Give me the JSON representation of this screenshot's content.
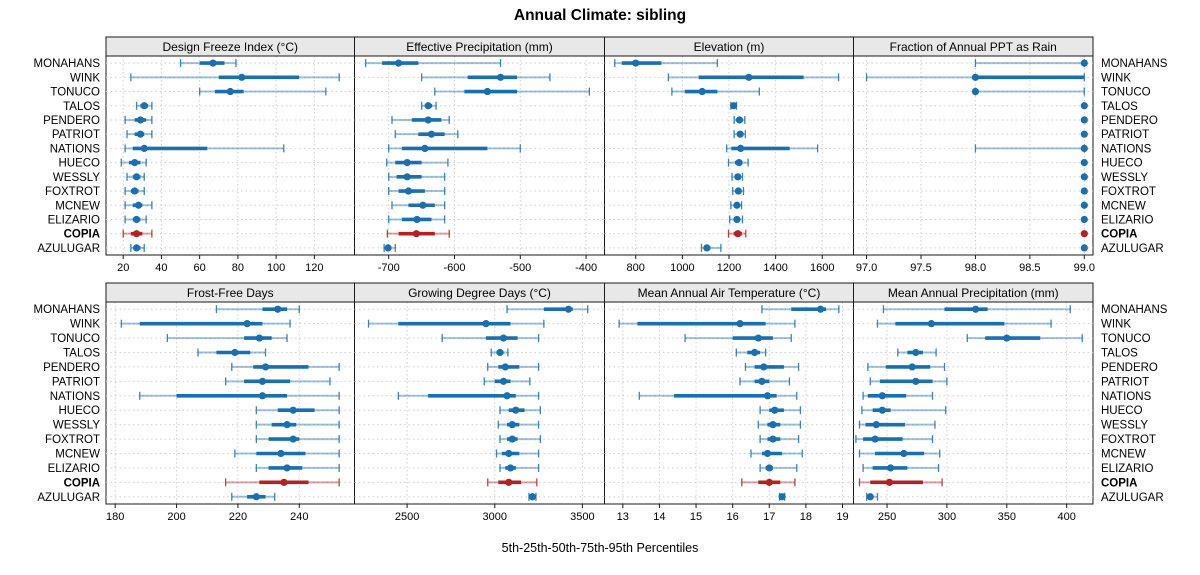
{
  "title": "Annual Climate: sibling",
  "caption": "5th-25th-50th-75th-95th Percentiles",
  "colors": {
    "primary": "#1a6faf",
    "highlight": "#b22222",
    "grid": "#cfcfcf",
    "border": "#1a1a1a",
    "strip_bg": "#e8e8e8"
  },
  "chart_data": {
    "type": "percentile-dotplot",
    "layout": {
      "rows": 2,
      "cols": 4
    },
    "percentiles": [
      "5th",
      "25th",
      "50th",
      "75th",
      "95th"
    ],
    "stations": [
      "MONAHANS",
      "WINK",
      "TONUCO",
      "TALOS",
      "PENDERO",
      "PATRIOT",
      "NATIONS",
      "HUECO",
      "WESSLY",
      "FOXTROT",
      "MCNEW",
      "ELIZARIO",
      "COPIA",
      "AZULUGAR"
    ],
    "highlight_station": "COPIA",
    "panels": [
      {
        "title": "Design Freeze Index (°C)",
        "row": 0,
        "col": 0,
        "xlim": [
          11,
          141
        ],
        "ticks": [
          20,
          40,
          60,
          80,
          100,
          120
        ],
        "values": [
          [
            50,
            60,
            67,
            73,
            79
          ],
          [
            24,
            70,
            82,
            112,
            133
          ],
          [
            60,
            68,
            76,
            83,
            126
          ],
          [
            27,
            29,
            31,
            33,
            35
          ],
          [
            21,
            26,
            29,
            32,
            35
          ],
          [
            22,
            26,
            29,
            31,
            35
          ],
          [
            21,
            25,
            31,
            64,
            104
          ],
          [
            19,
            23,
            26,
            29,
            32
          ],
          [
            22,
            25,
            27,
            29,
            31
          ],
          [
            21,
            24,
            26,
            28,
            31
          ],
          [
            21,
            25,
            28,
            30,
            35
          ],
          [
            21,
            25,
            27,
            29,
            32
          ],
          [
            20,
            24,
            27,
            30,
            35
          ],
          [
            24,
            26,
            27,
            29,
            31
          ]
        ]
      },
      {
        "title": "Effective Precipitation (mm)",
        "row": 0,
        "col": 1,
        "xlim": [
          -752,
          -372
        ],
        "ticks": [
          -700,
          -600,
          -500,
          -400
        ],
        "values": [
          [
            -735,
            -710,
            -685,
            -655,
            -530
          ],
          [
            -650,
            -580,
            -530,
            -505,
            -455
          ],
          [
            -630,
            -585,
            -550,
            -505,
            -395
          ],
          [
            -650,
            -645,
            -640,
            -634,
            -628
          ],
          [
            -695,
            -665,
            -640,
            -620,
            -608
          ],
          [
            -690,
            -655,
            -635,
            -615,
            -595
          ],
          [
            -700,
            -680,
            -645,
            -550,
            -500
          ],
          [
            -703,
            -690,
            -672,
            -650,
            -610
          ],
          [
            -700,
            -688,
            -672,
            -650,
            -615
          ],
          [
            -700,
            -685,
            -670,
            -645,
            -615
          ],
          [
            -695,
            -670,
            -648,
            -630,
            -615
          ],
          [
            -700,
            -680,
            -657,
            -635,
            -615
          ],
          [
            -702,
            -685,
            -658,
            -630,
            -608
          ],
          [
            -707,
            -704,
            -701,
            -698,
            -690
          ]
        ]
      },
      {
        "title": "Elevation (m)",
        "row": 0,
        "col": 2,
        "xlim": [
          666,
          1734
        ],
        "ticks": [
          800,
          1000,
          1200,
          1400,
          1600
        ],
        "values": [
          [
            710,
            740,
            800,
            910,
            1150
          ],
          [
            940,
            1070,
            1285,
            1520,
            1670
          ],
          [
            955,
            1010,
            1085,
            1150,
            1330
          ],
          [
            1208,
            1214,
            1220,
            1226,
            1232
          ],
          [
            1222,
            1235,
            1245,
            1255,
            1268
          ],
          [
            1222,
            1235,
            1248,
            1258,
            1270
          ],
          [
            1190,
            1210,
            1250,
            1460,
            1580
          ],
          [
            1198,
            1225,
            1243,
            1258,
            1282
          ],
          [
            1213,
            1227,
            1238,
            1248,
            1258
          ],
          [
            1216,
            1230,
            1240,
            1250,
            1262
          ],
          [
            1208,
            1224,
            1234,
            1244,
            1254
          ],
          [
            1203,
            1220,
            1234,
            1247,
            1258
          ],
          [
            1198,
            1220,
            1238,
            1255,
            1272
          ],
          [
            1082,
            1094,
            1105,
            1120,
            1165
          ]
        ]
      },
      {
        "title": "Fraction of Annual PPT as Rain",
        "row": 0,
        "col": 3,
        "xlim": [
          96.88,
          99.08
        ],
        "ticks": [
          97.0,
          97.5,
          98.0,
          98.5,
          99.0
        ],
        "tick_labels": [
          "97.0",
          "97.5",
          "98.0",
          "98.5",
          "99.0"
        ],
        "values": [
          [
            98,
            99,
            99,
            99,
            99
          ],
          [
            97,
            98,
            98,
            99,
            99
          ],
          [
            98,
            98,
            98,
            98,
            99
          ],
          [
            99,
            99,
            99,
            99,
            99
          ],
          [
            99,
            99,
            99,
            99,
            99
          ],
          [
            99,
            99,
            99,
            99,
            99
          ],
          [
            98,
            99,
            99,
            99,
            99
          ],
          [
            99,
            99,
            99,
            99,
            99
          ],
          [
            99,
            99,
            99,
            99,
            99
          ],
          [
            99,
            99,
            99,
            99,
            99
          ],
          [
            99,
            99,
            99,
            99,
            99
          ],
          [
            99,
            99,
            99,
            99,
            99
          ],
          [
            99,
            99,
            99,
            99,
            99
          ],
          [
            99,
            99,
            99,
            99,
            99
          ]
        ]
      },
      {
        "title": "Frost-Free Days",
        "row": 1,
        "col": 0,
        "xlim": [
          177,
          258
        ],
        "ticks": [
          180,
          200,
          220,
          240
        ],
        "values": [
          [
            213,
            228,
            233,
            236,
            240
          ],
          [
            182,
            188,
            223,
            228,
            237
          ],
          [
            197,
            222,
            227,
            231,
            236
          ],
          [
            207,
            213,
            219,
            224,
            229
          ],
          [
            218,
            225,
            229,
            243,
            253
          ],
          [
            216,
            222,
            228,
            237,
            250
          ],
          [
            188,
            200,
            228,
            236,
            253
          ],
          [
            226,
            233,
            238,
            245,
            253
          ],
          [
            226,
            231,
            236,
            239,
            253
          ],
          [
            226,
            230,
            238,
            240,
            253
          ],
          [
            219,
            226,
            234,
            242,
            253
          ],
          [
            226,
            230,
            236,
            241,
            253
          ],
          [
            216,
            227,
            235,
            243,
            253
          ],
          [
            218,
            223,
            226,
            229,
            232
          ]
        ]
      },
      {
        "title": "Growing Degree Days (°C)",
        "row": 1,
        "col": 1,
        "xlim": [
          2200,
          3626
        ],
        "ticks": [
          2500,
          3000,
          3500
        ],
        "values": [
          [
            3070,
            3280,
            3420,
            3445,
            3530
          ],
          [
            2280,
            2450,
            2950,
            3090,
            3280
          ],
          [
            2700,
            2950,
            3050,
            3130,
            3250
          ],
          [
            2980,
            3010,
            3030,
            3050,
            3075
          ],
          [
            2960,
            3020,
            3060,
            3140,
            3250
          ],
          [
            2940,
            3000,
            3050,
            3090,
            3200
          ],
          [
            2450,
            2620,
            3070,
            3120,
            3250
          ],
          [
            3030,
            3080,
            3120,
            3170,
            3260
          ],
          [
            3020,
            3070,
            3100,
            3140,
            3250
          ],
          [
            3030,
            3070,
            3100,
            3130,
            3260
          ],
          [
            3010,
            3040,
            3080,
            3140,
            3250
          ],
          [
            3030,
            3060,
            3090,
            3120,
            3250
          ],
          [
            2960,
            3020,
            3080,
            3150,
            3240
          ],
          [
            3195,
            3205,
            3215,
            3225,
            3235
          ]
        ]
      },
      {
        "title": "Mean Annual Air Temperature (°C)",
        "row": 1,
        "col": 2,
        "xlim": [
          12.5,
          19.3
        ],
        "ticks": [
          13,
          14,
          15,
          16,
          17,
          18,
          19
        ],
        "values": [
          [
            16.8,
            17.6,
            18.4,
            18.55,
            18.9
          ],
          [
            12.9,
            13.4,
            16.2,
            16.9,
            17.7
          ],
          [
            14.7,
            16.0,
            16.7,
            17.1,
            17.6
          ],
          [
            16.1,
            16.4,
            16.6,
            16.75,
            16.9
          ],
          [
            16.35,
            16.6,
            16.85,
            17.4,
            17.8
          ],
          [
            16.2,
            16.6,
            16.8,
            17.0,
            17.55
          ],
          [
            13.45,
            14.4,
            16.95,
            17.2,
            17.75
          ],
          [
            16.75,
            17.0,
            17.15,
            17.4,
            17.85
          ],
          [
            16.7,
            16.95,
            17.1,
            17.3,
            17.85
          ],
          [
            16.75,
            16.95,
            17.1,
            17.3,
            17.8
          ],
          [
            16.5,
            16.8,
            16.95,
            17.35,
            17.9
          ],
          [
            16.75,
            16.9,
            17.0,
            17.1,
            17.75
          ],
          [
            16.25,
            16.7,
            17.0,
            17.3,
            17.7
          ],
          [
            17.28,
            17.32,
            17.35,
            17.38,
            17.42
          ]
        ]
      },
      {
        "title": "Mean Annual Precipitation (mm)",
        "row": 1,
        "col": 3,
        "xlim": [
          222,
          422
        ],
        "ticks": [
          250,
          300,
          350,
          400
        ],
        "values": [
          [
            247,
            298,
            324,
            334,
            403
          ],
          [
            242,
            257,
            287,
            348,
            387
          ],
          [
            317,
            332,
            350,
            378,
            413
          ],
          [
            259,
            267,
            274,
            280,
            291
          ],
          [
            234,
            249,
            271,
            286,
            298
          ],
          [
            236,
            244,
            274,
            288,
            300
          ],
          [
            230,
            234,
            246,
            266,
            288
          ],
          [
            229,
            238,
            246,
            253,
            299
          ],
          [
            227,
            232,
            241,
            265,
            290
          ],
          [
            224,
            230,
            240,
            263,
            288
          ],
          [
            227,
            240,
            264,
            281,
            294
          ],
          [
            230,
            238,
            253,
            267,
            293
          ],
          [
            227,
            236,
            252,
            280,
            296
          ],
          [
            233,
            235,
            236,
            238,
            242
          ]
        ]
      }
    ]
  }
}
